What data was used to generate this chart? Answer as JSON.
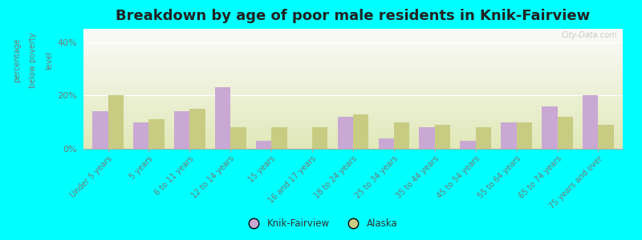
{
  "title": "Breakdown by age of poor male residents in Knik-Fairview",
  "categories": [
    "Under 5 years",
    "5 years",
    "6 to 11 years",
    "12 to 14 years",
    "15 years",
    "16 and 17 years",
    "18 to 24 years",
    "25 to 34 years",
    "35 to 44 years",
    "45 to 54 years",
    "55 to 64 years",
    "65 to 74 years",
    "75 years and over"
  ],
  "knik_values": [
    14,
    10,
    14,
    23,
    3,
    0,
    12,
    4,
    8,
    3,
    10,
    16,
    20
  ],
  "alaska_values": [
    20,
    11,
    15,
    8,
    8,
    8,
    13,
    10,
    9,
    8,
    10,
    12,
    9
  ],
  "knik_color": "#c9a8d4",
  "alaska_color": "#c8cc82",
  "ylabel_line1": "percentage",
  "ylabel_line2": "below poverty",
  "ylabel_line3": "level",
  "ylim": [
    0,
    45
  ],
  "yticks": [
    0,
    20,
    40
  ],
  "ytick_labels": [
    "0%",
    "20%",
    "40%"
  ],
  "bg_outer": "#00ffff",
  "title_fontsize": 13,
  "watermark": "City-Data.com",
  "legend_labels": [
    "Knik-Fairview",
    "Alaska"
  ]
}
